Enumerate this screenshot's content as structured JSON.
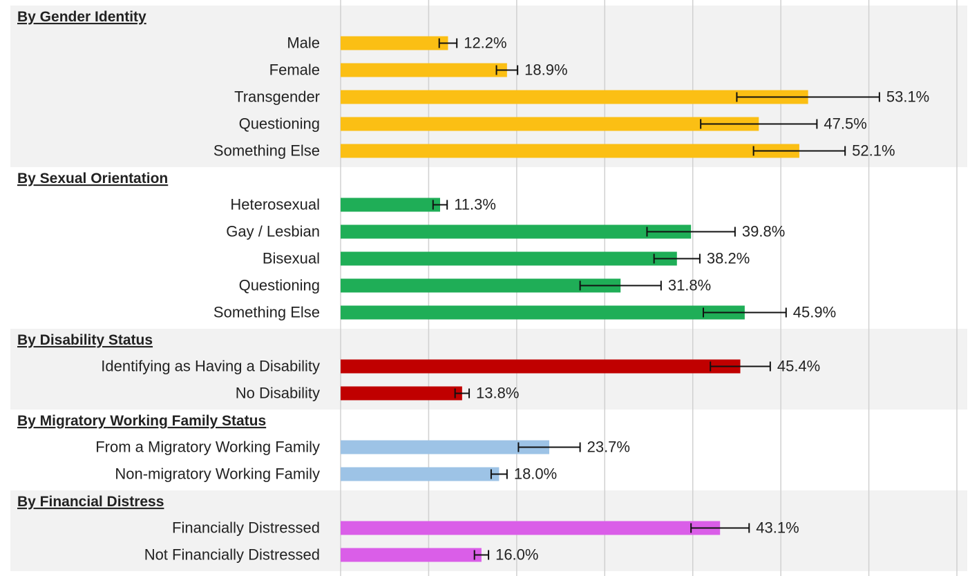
{
  "chart_data": {
    "type": "bar",
    "xlim": [
      0,
      70
    ],
    "xticks": [
      0,
      10,
      20,
      30,
      40,
      50,
      60,
      70
    ],
    "grid": true,
    "groups": [
      {
        "name": "By Gender Identity",
        "color": "#fbbf14",
        "categories": [
          "Male",
          "Female",
          "Transgender",
          "Questioning",
          "Something Else"
        ],
        "values": [
          12.2,
          18.9,
          53.1,
          47.5,
          52.1
        ],
        "errors": [
          1.0,
          1.2,
          8.1,
          6.6,
          5.2
        ],
        "value_labels": [
          "12.2%",
          "18.9%",
          "53.1%",
          "47.5%",
          "52.1%"
        ]
      },
      {
        "name": "By Sexual Orientation",
        "color": "#1fae57",
        "categories": [
          "Heterosexual",
          "Gay / Lesbian",
          "Bisexual",
          "Questioning",
          "Something Else"
        ],
        "values": [
          11.3,
          39.8,
          38.2,
          31.8,
          45.9
        ],
        "errors": [
          0.8,
          5.0,
          2.6,
          4.6,
          4.7
        ],
        "value_labels": [
          "11.3%",
          "39.8%",
          "38.2%",
          "31.8%",
          "45.9%"
        ]
      },
      {
        "name": "By Disability Status",
        "color": "#c00000",
        "categories": [
          "Identifying as Having a Disability",
          "No Disability"
        ],
        "values": [
          45.4,
          13.8
        ],
        "errors": [
          3.4,
          0.8
        ],
        "value_labels": [
          "45.4%",
          "13.8%"
        ]
      },
      {
        "name": "By Migratory Working Family Status",
        "color": "#9dc3e6",
        "categories": [
          "From a Migratory Working Family",
          "Non-migratory Working Family"
        ],
        "values": [
          23.7,
          18.0
        ],
        "errors": [
          3.5,
          0.9
        ],
        "value_labels": [
          "23.7%",
          "18.0%"
        ]
      },
      {
        "name": "By Financial Distress",
        "color": "#da5ee8",
        "categories": [
          "Financially Distressed",
          "Not Financially Distressed"
        ],
        "values": [
          43.1,
          16.0
        ],
        "errors": [
          3.3,
          0.8
        ],
        "value_labels": [
          "43.1%",
          "16.0%"
        ]
      }
    ]
  }
}
